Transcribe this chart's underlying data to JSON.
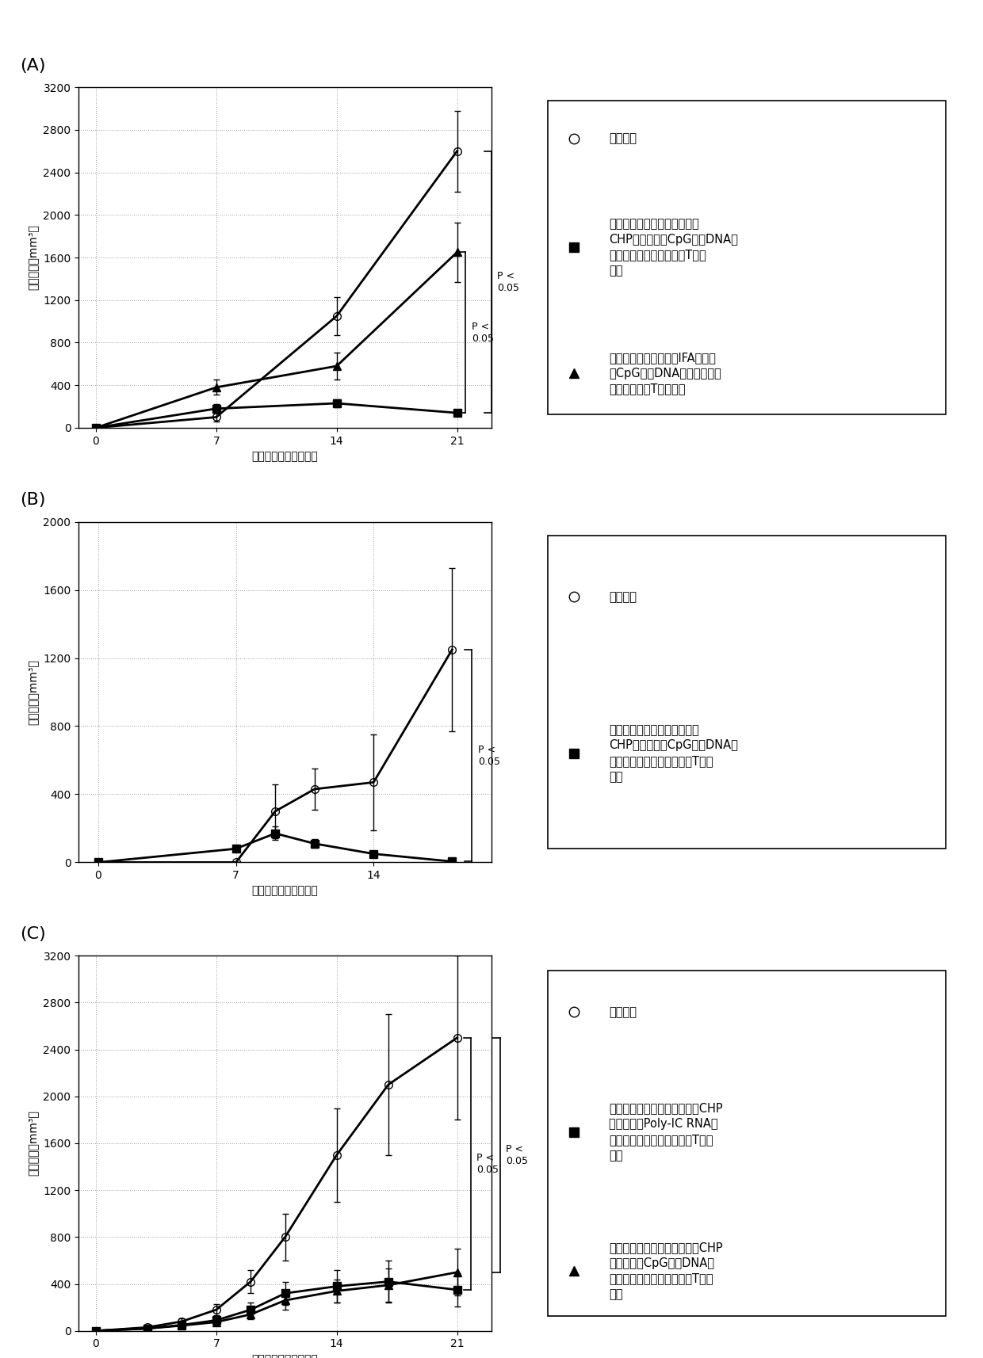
{
  "panel_A": {
    "label": "(A)",
    "xlabel": "肿瘤移植后天数（天）",
    "ylabel": "肿瘤体积（mm³）",
    "ylim": [
      0,
      3200
    ],
    "yticks": [
      0,
      400,
      800,
      1200,
      1600,
      2000,
      2400,
      2800,
      3200
    ],
    "xticks": [
      0,
      7,
      14,
      21
    ],
    "xlim": [
      -1,
      23
    ],
    "series": [
      {
        "x": [
          0,
          7,
          14,
          21
        ],
        "y": [
          0,
          100,
          1050,
          2600
        ],
        "yerr": [
          0,
          40,
          180,
          380
        ],
        "marker": "o",
        "fillstyle": "none",
        "color": "black",
        "linewidth": 2
      },
      {
        "x": [
          0,
          7,
          14,
          21
        ],
        "y": [
          0,
          180,
          230,
          140
        ],
        "yerr": [
          0,
          40,
          40,
          30
        ],
        "marker": "s",
        "fillstyle": "full",
        "color": "black",
        "linewidth": 2
      },
      {
        "x": [
          0,
          7,
          14,
          21
        ],
        "y": [
          0,
          380,
          580,
          1650
        ],
        "yerr": [
          0,
          70,
          130,
          280
        ],
        "marker": "^",
        "fillstyle": "full",
        "color": "black",
        "linewidth": 2
      }
    ],
    "p_annotations": [
      {
        "by1": 140,
        "by2": 1650,
        "bx": 21.5,
        "text": "P <\n0.05"
      },
      {
        "by1": 140,
        "by2": 2600,
        "bx": 23.0,
        "text": "P <\n0.05"
      }
    ],
    "legend_entries": [
      {
        "marker": "o",
        "fillstyle": "none",
        "color": "black",
        "label": "未治疗组"
      },
      {
        "marker": "s",
        "fillstyle": "full",
        "color": "black",
        "label": "预处理药物（长链肽抗原搜载\nCHP纳米凝胶＋CpG寡聚DNA、\n皮下给药）＋抗原特异性T细胞\n输注"
      },
      {
        "marker": "^",
        "fillstyle": "full",
        "color": "black",
        "label": "预处理药物（长链肽：IFA混合物\n＋CpG寡聚DNA、皮下给药）\n＋抗原特异性T细胞输注"
      }
    ]
  },
  "panel_B": {
    "label": "(B)",
    "xlabel": "肿瘤移植后天数（天）",
    "ylabel": "肿瘤体积（mm³）",
    "ylim": [
      0,
      2000
    ],
    "yticks": [
      0,
      400,
      800,
      1200,
      1600,
      2000
    ],
    "xticks": [
      0,
      7,
      14
    ],
    "xlim": [
      -1,
      20
    ],
    "series": [
      {
        "x": [
          0,
          7,
          9,
          11,
          14,
          18
        ],
        "y": [
          0,
          0,
          300,
          430,
          470,
          1250
        ],
        "yerr": [
          0,
          0,
          160,
          120,
          280,
          480
        ],
        "marker": "o",
        "fillstyle": "none",
        "color": "black",
        "linewidth": 2
      },
      {
        "x": [
          0,
          7,
          9,
          11,
          14,
          18
        ],
        "y": [
          0,
          80,
          170,
          110,
          50,
          5
        ],
        "yerr": [
          0,
          20,
          40,
          25,
          15,
          3
        ],
        "marker": "s",
        "fillstyle": "full",
        "color": "black",
        "linewidth": 2
      }
    ],
    "p_annotations": [
      {
        "by1": 5,
        "by2": 1250,
        "bx": 19.0,
        "text": "P <\n0.05"
      }
    ],
    "legend_entries": [
      {
        "marker": "o",
        "fillstyle": "none",
        "color": "black",
        "label": "未治疗组"
      },
      {
        "marker": "s",
        "fillstyle": "full",
        "color": "black",
        "label": "预处理药物（长链肽抗原搜载\nCHP纳米凝胶＋CpG寡聚DNA、\n静脉内给药）＋抗原特异性T细胞\n输注"
      }
    ]
  },
  "panel_C": {
    "label": "(C)",
    "xlabel": "肿瘤移植后天数（天）",
    "ylabel": "肿瘤体积（mm³）",
    "ylim": [
      0,
      3200
    ],
    "yticks": [
      0,
      400,
      800,
      1200,
      1600,
      2000,
      2400,
      2800,
      3200
    ],
    "xticks": [
      0,
      7,
      14,
      21
    ],
    "xlim": [
      -1,
      23
    ],
    "series": [
      {
        "x": [
          0,
          3,
          5,
          7,
          9,
          11,
          14,
          17,
          21
        ],
        "y": [
          0,
          30,
          80,
          180,
          420,
          800,
          1500,
          2100,
          2500
        ],
        "yerr": [
          0,
          15,
          25,
          50,
          100,
          200,
          400,
          600,
          700
        ],
        "marker": "o",
        "fillstyle": "none",
        "color": "black",
        "linewidth": 2
      },
      {
        "x": [
          0,
          3,
          5,
          7,
          9,
          11,
          14,
          17,
          21
        ],
        "y": [
          0,
          20,
          50,
          90,
          180,
          320,
          380,
          420,
          350
        ],
        "yerr": [
          0,
          10,
          15,
          25,
          60,
          100,
          140,
          180,
          140
        ],
        "marker": "s",
        "fillstyle": "full",
        "color": "black",
        "linewidth": 2
      },
      {
        "x": [
          0,
          3,
          5,
          7,
          9,
          11,
          14,
          17,
          21
        ],
        "y": [
          0,
          20,
          45,
          75,
          140,
          260,
          340,
          390,
          500
        ],
        "yerr": [
          0,
          10,
          15,
          20,
          40,
          80,
          100,
          140,
          200
        ],
        "marker": "^",
        "fillstyle": "full",
        "color": "black",
        "linewidth": 2
      }
    ],
    "p_annotations": [
      {
        "by1": 350,
        "by2": 2500,
        "bx": 21.8,
        "text": "P <\n0.05"
      },
      {
        "by1": 500,
        "by2": 2500,
        "bx": 23.5,
        "text": "P <\n0.05"
      }
    ],
    "legend_entries": [
      {
        "marker": "o",
        "fillstyle": "none",
        "color": "black",
        "label": "未治疗组"
      },
      {
        "marker": "s",
        "fillstyle": "full",
        "color": "black",
        "label": "预处理药物（长链肽抗原搜载CHP\n纳米凝胶＋Poly-IC RNA、\n静脉内给药）＋抗原特异性T细胞\n输注"
      },
      {
        "marker": "^",
        "fillstyle": "full",
        "color": "black",
        "label": "预处理药物（长链肽抗原搜载CHP\n纳米凝胶＋CpG寡聚DNA、\n静脉内给药）＋抗原特异性T细胞\n输注"
      }
    ]
  },
  "background_color": "#ffffff",
  "panel_label_fontsize": 16,
  "axis_label_fontsize": 10,
  "tick_fontsize": 10,
  "legend_fontsize": 10.5
}
